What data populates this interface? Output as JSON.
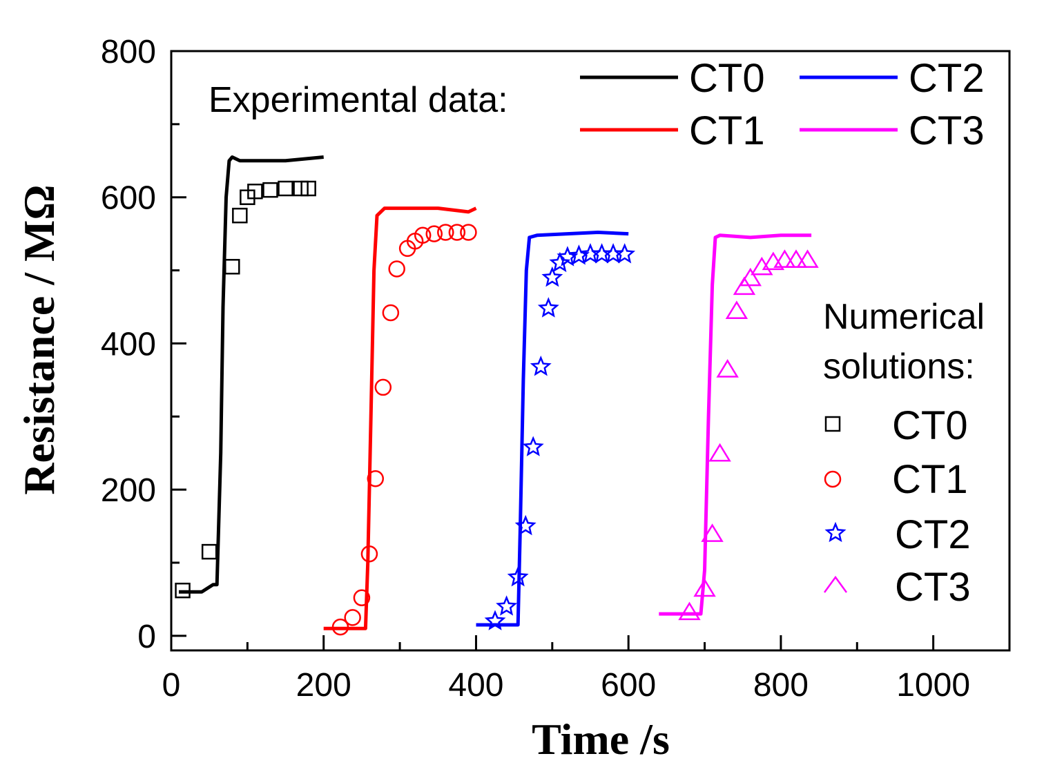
{
  "chart_data": {
    "type": "line",
    "title": "",
    "xlabel": "Time /s",
    "ylabel": "Resistance / MΩ",
    "xlim": [
      0,
      1100
    ],
    "ylim": [
      -20,
      800
    ],
    "xticks": [
      0,
      200,
      400,
      600,
      800,
      1000
    ],
    "xtick_labels": [
      "0",
      "200",
      "400",
      "600",
      "800",
      "1000"
    ],
    "yticks": [
      0,
      200,
      400,
      600,
      800
    ],
    "ytick_labels": [
      "0",
      "200",
      "400",
      "600",
      "800"
    ],
    "grid": false,
    "legend_experimental_title": "Experimental data:",
    "legend_numerical_title_line1": "Numerical",
    "legend_numerical_title_line2": "solutions:",
    "experimental": [
      {
        "name": "CT0",
        "color": "#000000",
        "x": [
          10,
          40,
          55,
          60,
          65,
          68,
          72,
          76,
          80,
          90,
          120,
          150,
          200
        ],
        "y": [
          60,
          60,
          70,
          70,
          250,
          450,
          600,
          650,
          655,
          650,
          650,
          650,
          655
        ]
      },
      {
        "name": "CT1",
        "color": "#ff0000",
        "x": [
          200,
          240,
          255,
          258,
          262,
          266,
          270,
          280,
          300,
          350,
          390,
          400
        ],
        "y": [
          10,
          10,
          10,
          100,
          300,
          500,
          575,
          585,
          585,
          585,
          580,
          585
        ]
      },
      {
        "name": "CT2",
        "color": "#0000ff",
        "x": [
          400,
          430,
          455,
          458,
          462,
          466,
          470,
          480,
          520,
          560,
          600
        ],
        "y": [
          15,
          15,
          15,
          150,
          350,
          500,
          545,
          548,
          550,
          552,
          550
        ]
      },
      {
        "name": "CT3",
        "color": "#ff00ff",
        "x": [
          640,
          665,
          695,
          700,
          705,
          710,
          714,
          720,
          760,
          800,
          840
        ],
        "y": [
          30,
          30,
          30,
          90,
          300,
          480,
          545,
          548,
          545,
          548,
          548
        ]
      }
    ],
    "numerical": [
      {
        "name": "CT0",
        "color": "#000000",
        "marker": "square",
        "x": [
          15,
          50,
          80,
          90,
          100,
          110,
          130,
          150,
          170,
          180
        ],
        "y": [
          62,
          115,
          505,
          575,
          600,
          608,
          610,
          612,
          612,
          612
        ]
      },
      {
        "name": "CT1",
        "color": "#ff0000",
        "marker": "circle",
        "x": [
          222,
          238,
          250,
          260,
          268,
          278,
          288,
          296,
          310,
          320,
          330,
          345,
          360,
          375,
          390
        ],
        "y": [
          12,
          25,
          52,
          112,
          215,
          340,
          442,
          502,
          530,
          540,
          548,
          550,
          552,
          552,
          552
        ]
      },
      {
        "name": "CT2",
        "color": "#0000ff",
        "marker": "star",
        "x": [
          425,
          440,
          455,
          465,
          475,
          485,
          495,
          500,
          510,
          520,
          535,
          550,
          565,
          580,
          595
        ],
        "y": [
          20,
          40,
          80,
          150,
          258,
          368,
          448,
          490,
          510,
          518,
          520,
          522,
          522,
          522,
          522
        ]
      },
      {
        "name": "CT3",
        "color": "#ff00ff",
        "marker": "triangle",
        "x": [
          680,
          700,
          710,
          720,
          730,
          742,
          752,
          760,
          775,
          790,
          805,
          820,
          835
        ],
        "y": [
          33,
          65,
          140,
          250,
          365,
          445,
          478,
          490,
          505,
          512,
          515,
          515,
          515
        ]
      }
    ]
  }
}
